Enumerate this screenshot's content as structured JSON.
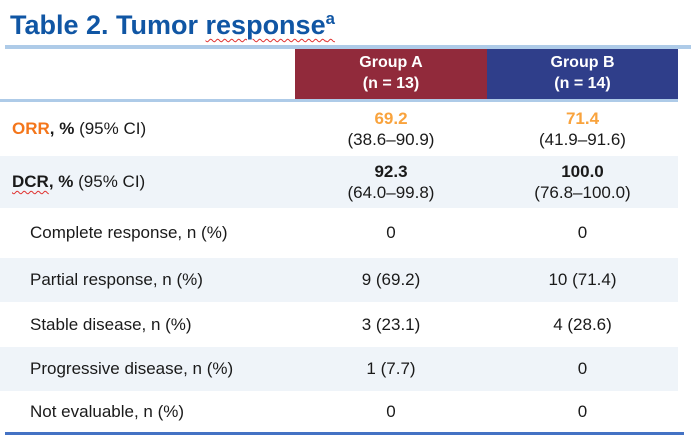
{
  "title": {
    "text_plain": "Table 2. Tumor ",
    "text_misspelled": "response",
    "superscript": "a"
  },
  "header": {
    "group_a": {
      "name": "Group A",
      "n": "(n = 13)"
    },
    "group_b": {
      "name": "Group B",
      "n": "(n = 14)"
    }
  },
  "rows": [
    {
      "label_em": "ORR",
      "label_bold": ", %",
      "label_normal": " (95% CI)",
      "group_a_main": "69.2",
      "group_a_ci": "(38.6–90.9)",
      "group_b_main": "71.4",
      "group_b_ci": "(41.9–91.6)"
    },
    {
      "label_em": "DCR",
      "label_bold": ", %",
      "label_normal": " (95% CI)",
      "group_a_main": "92.3",
      "group_a_ci": "(64.0–99.8)",
      "group_b_main": "100.0",
      "group_b_ci": "(76.8–100.0)"
    },
    {
      "label": "Complete response, n (%)",
      "group_a": "0",
      "group_b": "0"
    },
    {
      "label": "Partial response, n (%)",
      "group_a": "9 (69.2)",
      "group_b": "10 (71.4)"
    },
    {
      "label": "Stable disease, n (%)",
      "group_a": "3 (23.1)",
      "group_b": "4 (28.6)"
    },
    {
      "label": "Progressive disease, n (%)",
      "group_a": "1 (7.7)",
      "group_b": "0"
    },
    {
      "label": "Not evaluable, n (%)",
      "group_a": "0",
      "group_b": "0"
    }
  ],
  "colors": {
    "title_blue": "#1056A4",
    "group_a_header_bg": "#912A3B",
    "group_b_header_bg": "#2F3E8A",
    "orr_label_orange": "#F4761B",
    "orr_value_orange": "#F9A33D",
    "alt_row_bg": "#EFF4F9",
    "light_rule_blue": "#AECBE8",
    "bottom_rule_blue": "#4472C4",
    "spellcheck_red": "#E0302E"
  }
}
